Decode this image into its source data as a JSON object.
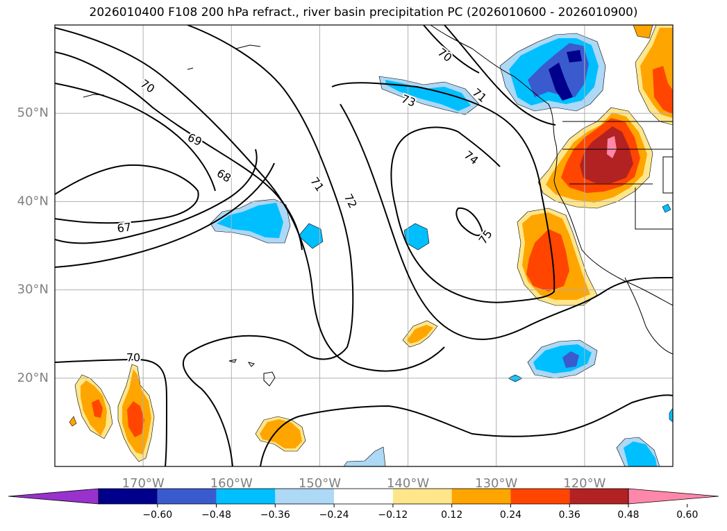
{
  "title": "2026010400 F108 200 hPa refract., river basin precipitation PC (2026010600 - 2026010900)",
  "map": {
    "lat_labels": [
      {
        "lat": 50,
        "text": "50°N"
      },
      {
        "lat": 40,
        "text": "40°N"
      },
      {
        "lat": 30,
        "text": "30°N"
      },
      {
        "lat": 20,
        "text": "20°N"
      }
    ],
    "lon_labels": [
      {
        "lon": -170,
        "text": "170°W"
      },
      {
        "lon": -160,
        "text": "160°W"
      },
      {
        "lon": -150,
        "text": "150°W"
      },
      {
        "lon": -140,
        "text": "140°W"
      },
      {
        "lon": -130,
        "text": "130°W"
      },
      {
        "lon": -120,
        "text": "120°W"
      }
    ],
    "extent": {
      "lon": [
        -180,
        -110
      ],
      "lat": [
        10,
        60
      ]
    },
    "grid": true,
    "contour_labels": [
      "70",
      "70",
      "71",
      "73",
      "69",
      "68",
      "67",
      "71",
      "72",
      "74",
      "75",
      "70"
    ],
    "label_color": "#808080",
    "grid_color": "#b0b0b0"
  },
  "colorbar": {
    "colors": [
      "#9932cc",
      "#00008b",
      "#3a5bcd",
      "#00bfff",
      "#add8f6",
      "#ffffff",
      "#ffe68a",
      "#ffa500",
      "#ff4500",
      "#b22222",
      "#ff87aa"
    ],
    "ticks": [
      "−0.60",
      "−0.48",
      "−0.36",
      "−0.24",
      "−0.12",
      "0.12",
      "0.24",
      "0.36",
      "0.48",
      "0.60"
    ]
  }
}
